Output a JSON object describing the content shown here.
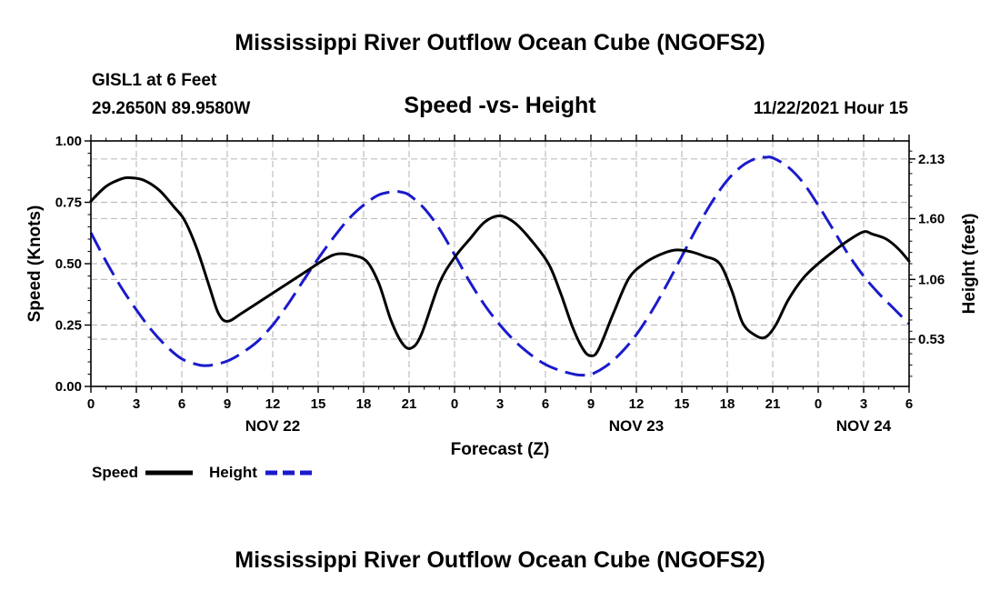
{
  "page": {
    "title": "Mississippi River Outflow Ocean Cube (NGOFS2)",
    "footer_title": "Mississippi River Outflow Ocean Cube (NGOFS2)",
    "station": "GISL1 at 6 Feet",
    "coords": "29.2650N  89.9580W",
    "timestamp": "11/22/2021 Hour 15"
  },
  "chart_data": {
    "type": "line",
    "title": "Speed -vs- Height",
    "xlabel": "Forecast (Z)",
    "ylabel": "Speed (Knots)",
    "y2label": "Height (feet)",
    "x_units": "hours since 11/22 00Z",
    "xlim": [
      0,
      54
    ],
    "ylim": [
      0,
      1
    ],
    "y2lim": [
      0.11,
      2.29
    ],
    "x_ticks": [
      0,
      3,
      6,
      9,
      12,
      15,
      18,
      21,
      24,
      27,
      30,
      33,
      36,
      39,
      42,
      45,
      48,
      51,
      54
    ],
    "x_tick_labels": [
      "0",
      "3",
      "6",
      "9",
      "12",
      "15",
      "18",
      "21",
      "0",
      "3",
      "6",
      "9",
      "12",
      "15",
      "18",
      "21",
      "0",
      "3",
      "6"
    ],
    "date_labels": [
      {
        "x": 12,
        "label": "NOV 22"
      },
      {
        "x": 36,
        "label": "NOV 23"
      },
      {
        "x": 51,
        "label": "NOV 24"
      }
    ],
    "y_ticks": [
      0,
      0.25,
      0.5,
      0.75,
      1.0
    ],
    "y_tick_labels": [
      "0.00",
      "0.25",
      "0.50",
      "0.75",
      "1.00"
    ],
    "y2_ticks": [
      0.53,
      1.06,
      1.6,
      2.13
    ],
    "y2_tick_labels": [
      "0.53",
      "1.06",
      "1.60",
      "2.13"
    ],
    "series": [
      {
        "name": "Speed",
        "axis": "left",
        "color": "#000000",
        "dash": "solid",
        "x": [
          0,
          1,
          2,
          2.6,
          3.5,
          4.5,
          5.5,
          6.2,
          7,
          7.8,
          8.4,
          9,
          10,
          12,
          14,
          15.5,
          16.3,
          17.2,
          18.2,
          19,
          19.8,
          20.5,
          21.1,
          21.8,
          23,
          24,
          25,
          26,
          27,
          28,
          29,
          30.2,
          31,
          31.8,
          32.5,
          33,
          33.5,
          34.5,
          35.5,
          36.5,
          37.5,
          38.5,
          39.5,
          40.5,
          41.5,
          42.3,
          43,
          43.8,
          44.5,
          45.2,
          46,
          47,
          48,
          49,
          50,
          51,
          51.6,
          52.5,
          53.3,
          54
        ],
        "values": [
          0.755,
          0.815,
          0.845,
          0.85,
          0.84,
          0.8,
          0.73,
          0.675,
          0.56,
          0.41,
          0.3,
          0.265,
          0.3,
          0.38,
          0.46,
          0.52,
          0.54,
          0.535,
          0.51,
          0.42,
          0.27,
          0.18,
          0.155,
          0.21,
          0.42,
          0.525,
          0.6,
          0.67,
          0.695,
          0.665,
          0.6,
          0.5,
          0.38,
          0.24,
          0.15,
          0.125,
          0.15,
          0.3,
          0.44,
          0.5,
          0.535,
          0.555,
          0.55,
          0.53,
          0.5,
          0.39,
          0.26,
          0.21,
          0.2,
          0.25,
          0.35,
          0.44,
          0.5,
          0.55,
          0.595,
          0.63,
          0.62,
          0.6,
          0.56,
          0.51
        ]
      },
      {
        "name": "Height",
        "axis": "right",
        "color": "#1a1acc",
        "dash": "dashed",
        "x": [
          0,
          1,
          2,
          3,
          4,
          5,
          6,
          7,
          7.5,
          8,
          9,
          10,
          11,
          12,
          13,
          14,
          15,
          16,
          17,
          18,
          19,
          20,
          20.5,
          21,
          22,
          23,
          24,
          25,
          26,
          27,
          28,
          29,
          30,
          31,
          32,
          32.5,
          33,
          34,
          35,
          36,
          37,
          38,
          39,
          40,
          41,
          42,
          43,
          44,
          44.5,
          45,
          46,
          47,
          48,
          49,
          50,
          51,
          52,
          53,
          54
        ],
        "values": [
          1.475,
          1.22,
          0.99,
          0.79,
          0.61,
          0.465,
          0.355,
          0.305,
          0.295,
          0.3,
          0.335,
          0.41,
          0.51,
          0.655,
          0.84,
          1.045,
          1.245,
          1.43,
          1.595,
          1.72,
          1.81,
          1.84,
          1.835,
          1.81,
          1.69,
          1.51,
          1.28,
          1.04,
          0.83,
          0.655,
          0.51,
          0.395,
          0.305,
          0.25,
          0.215,
          0.21,
          0.215,
          0.29,
          0.41,
          0.57,
          0.775,
          1.01,
          1.265,
          1.52,
          1.75,
          1.94,
          2.07,
          2.14,
          2.145,
          2.14,
          2.06,
          1.92,
          1.72,
          1.5,
          1.28,
          1.09,
          0.935,
          0.8,
          0.665
        ]
      }
    ],
    "legend": {
      "position": "bottom-left"
    }
  }
}
